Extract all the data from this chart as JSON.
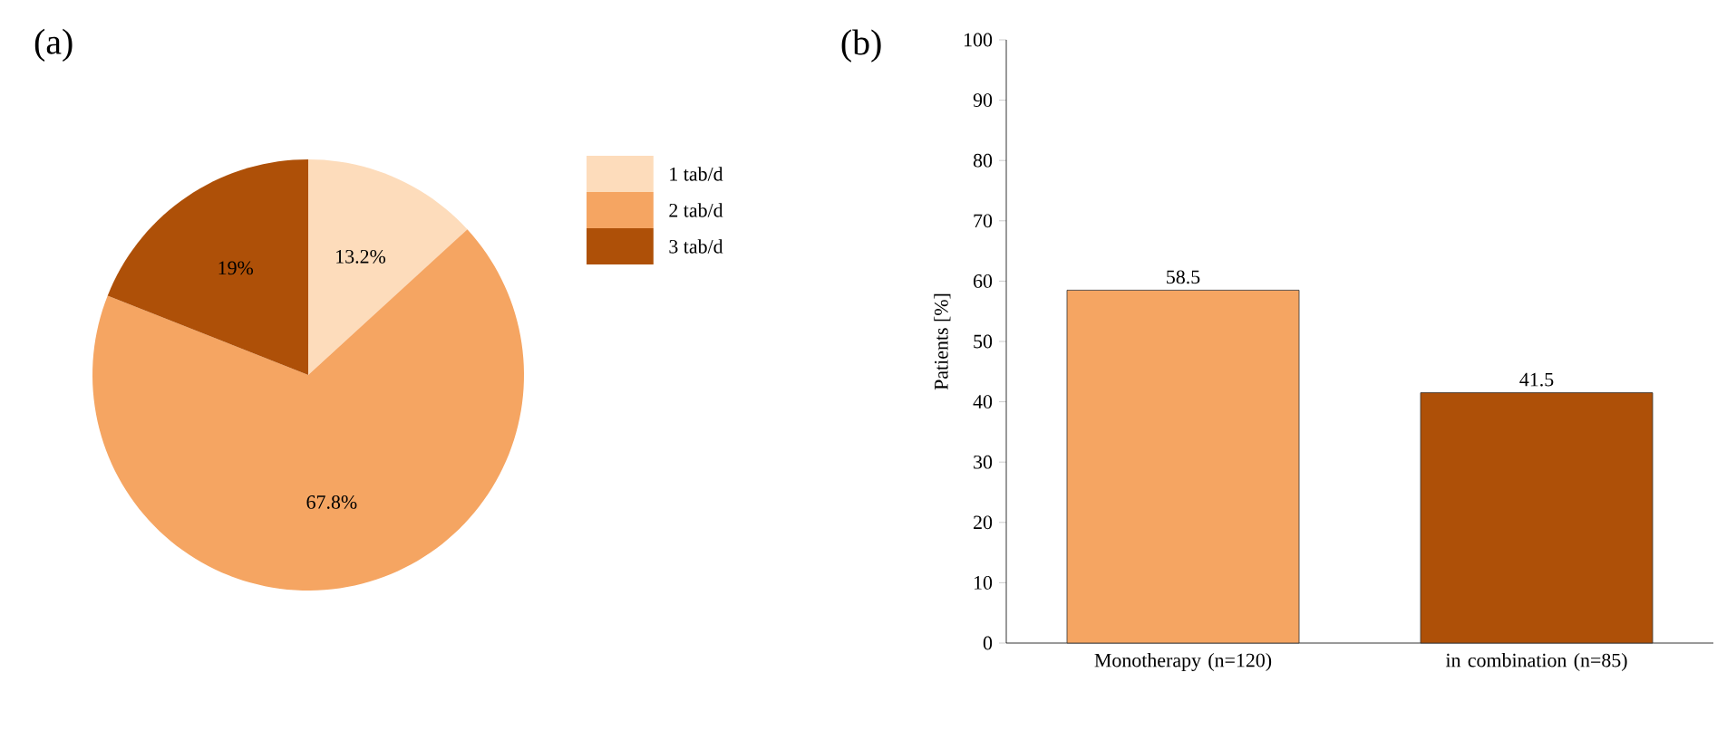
{
  "chart_data": [
    {
      "type": "pie",
      "title": "(a)",
      "categories": [
        "1 tab/d",
        "2 tab/d",
        "3 tab/d"
      ],
      "values": [
        13.2,
        67.8,
        19
      ],
      "colors": [
        "#fddcbb",
        "#f5a562",
        "#ae5008"
      ],
      "value_labels": [
        "13.2%",
        "67.8%",
        "19%"
      ],
      "legend": "right"
    },
    {
      "type": "bar",
      "title": "(b)",
      "ylabel": "Patients [%]",
      "categories": [
        "Monotherapy (n=120)",
        "in combination (n=85)"
      ],
      "values": [
        58.5,
        41.5
      ],
      "colors": [
        "#f5a562",
        "#ae5008"
      ],
      "data_labels": true,
      "ylim": [
        0,
        100
      ],
      "yticks": [
        0,
        10,
        20,
        30,
        40,
        50,
        60,
        70,
        80,
        90,
        100
      ]
    }
  ]
}
